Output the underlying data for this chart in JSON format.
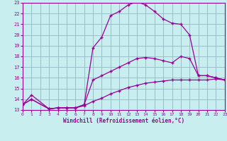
{
  "xlabel": "Windchill (Refroidissement éolien,°C)",
  "xlim": [
    0,
    23
  ],
  "ylim": [
    13,
    23
  ],
  "xticks": [
    0,
    1,
    2,
    3,
    4,
    5,
    6,
    7,
    8,
    9,
    10,
    11,
    12,
    13,
    14,
    15,
    16,
    17,
    18,
    19,
    20,
    21,
    22,
    23
  ],
  "yticks": [
    13,
    14,
    15,
    16,
    17,
    18,
    19,
    20,
    21,
    22,
    23
  ],
  "bg_color": "#c8eef0",
  "line_color": "#990099",
  "grid_color": "#9bbfc8",
  "line1_x": [
    0,
    1,
    3,
    4,
    5,
    6,
    7,
    8,
    9,
    10,
    11,
    12,
    13,
    14,
    15,
    16,
    17,
    18,
    19,
    20,
    21,
    22,
    23
  ],
  "line1_y": [
    13.5,
    14.0,
    13.1,
    13.2,
    13.2,
    13.2,
    13.5,
    18.8,
    19.8,
    21.8,
    22.2,
    22.8,
    23.1,
    22.8,
    22.2,
    21.5,
    21.1,
    21.0,
    20.0,
    16.2,
    16.2,
    16.0,
    15.8
  ],
  "line2_x": [
    0,
    1,
    3,
    4,
    5,
    6,
    7,
    8,
    9,
    10,
    11,
    12,
    13,
    14,
    15,
    16,
    17,
    18,
    19,
    20,
    21,
    22,
    23
  ],
  "line2_y": [
    13.5,
    14.4,
    13.1,
    13.2,
    13.2,
    13.2,
    13.5,
    15.8,
    16.2,
    16.6,
    17.0,
    17.4,
    17.8,
    17.9,
    17.8,
    17.6,
    17.4,
    18.0,
    17.8,
    16.2,
    16.2,
    16.0,
    15.8
  ],
  "line3_x": [
    0,
    1,
    3,
    4,
    5,
    6,
    7,
    8,
    9,
    10,
    11,
    12,
    13,
    14,
    15,
    16,
    17,
    18,
    19,
    20,
    21,
    22,
    23
  ],
  "line3_y": [
    13.5,
    14.0,
    13.1,
    13.2,
    13.2,
    13.2,
    13.4,
    13.8,
    14.1,
    14.5,
    14.8,
    15.1,
    15.3,
    15.5,
    15.6,
    15.7,
    15.8,
    15.8,
    15.8,
    15.8,
    15.8,
    15.9,
    15.8
  ]
}
